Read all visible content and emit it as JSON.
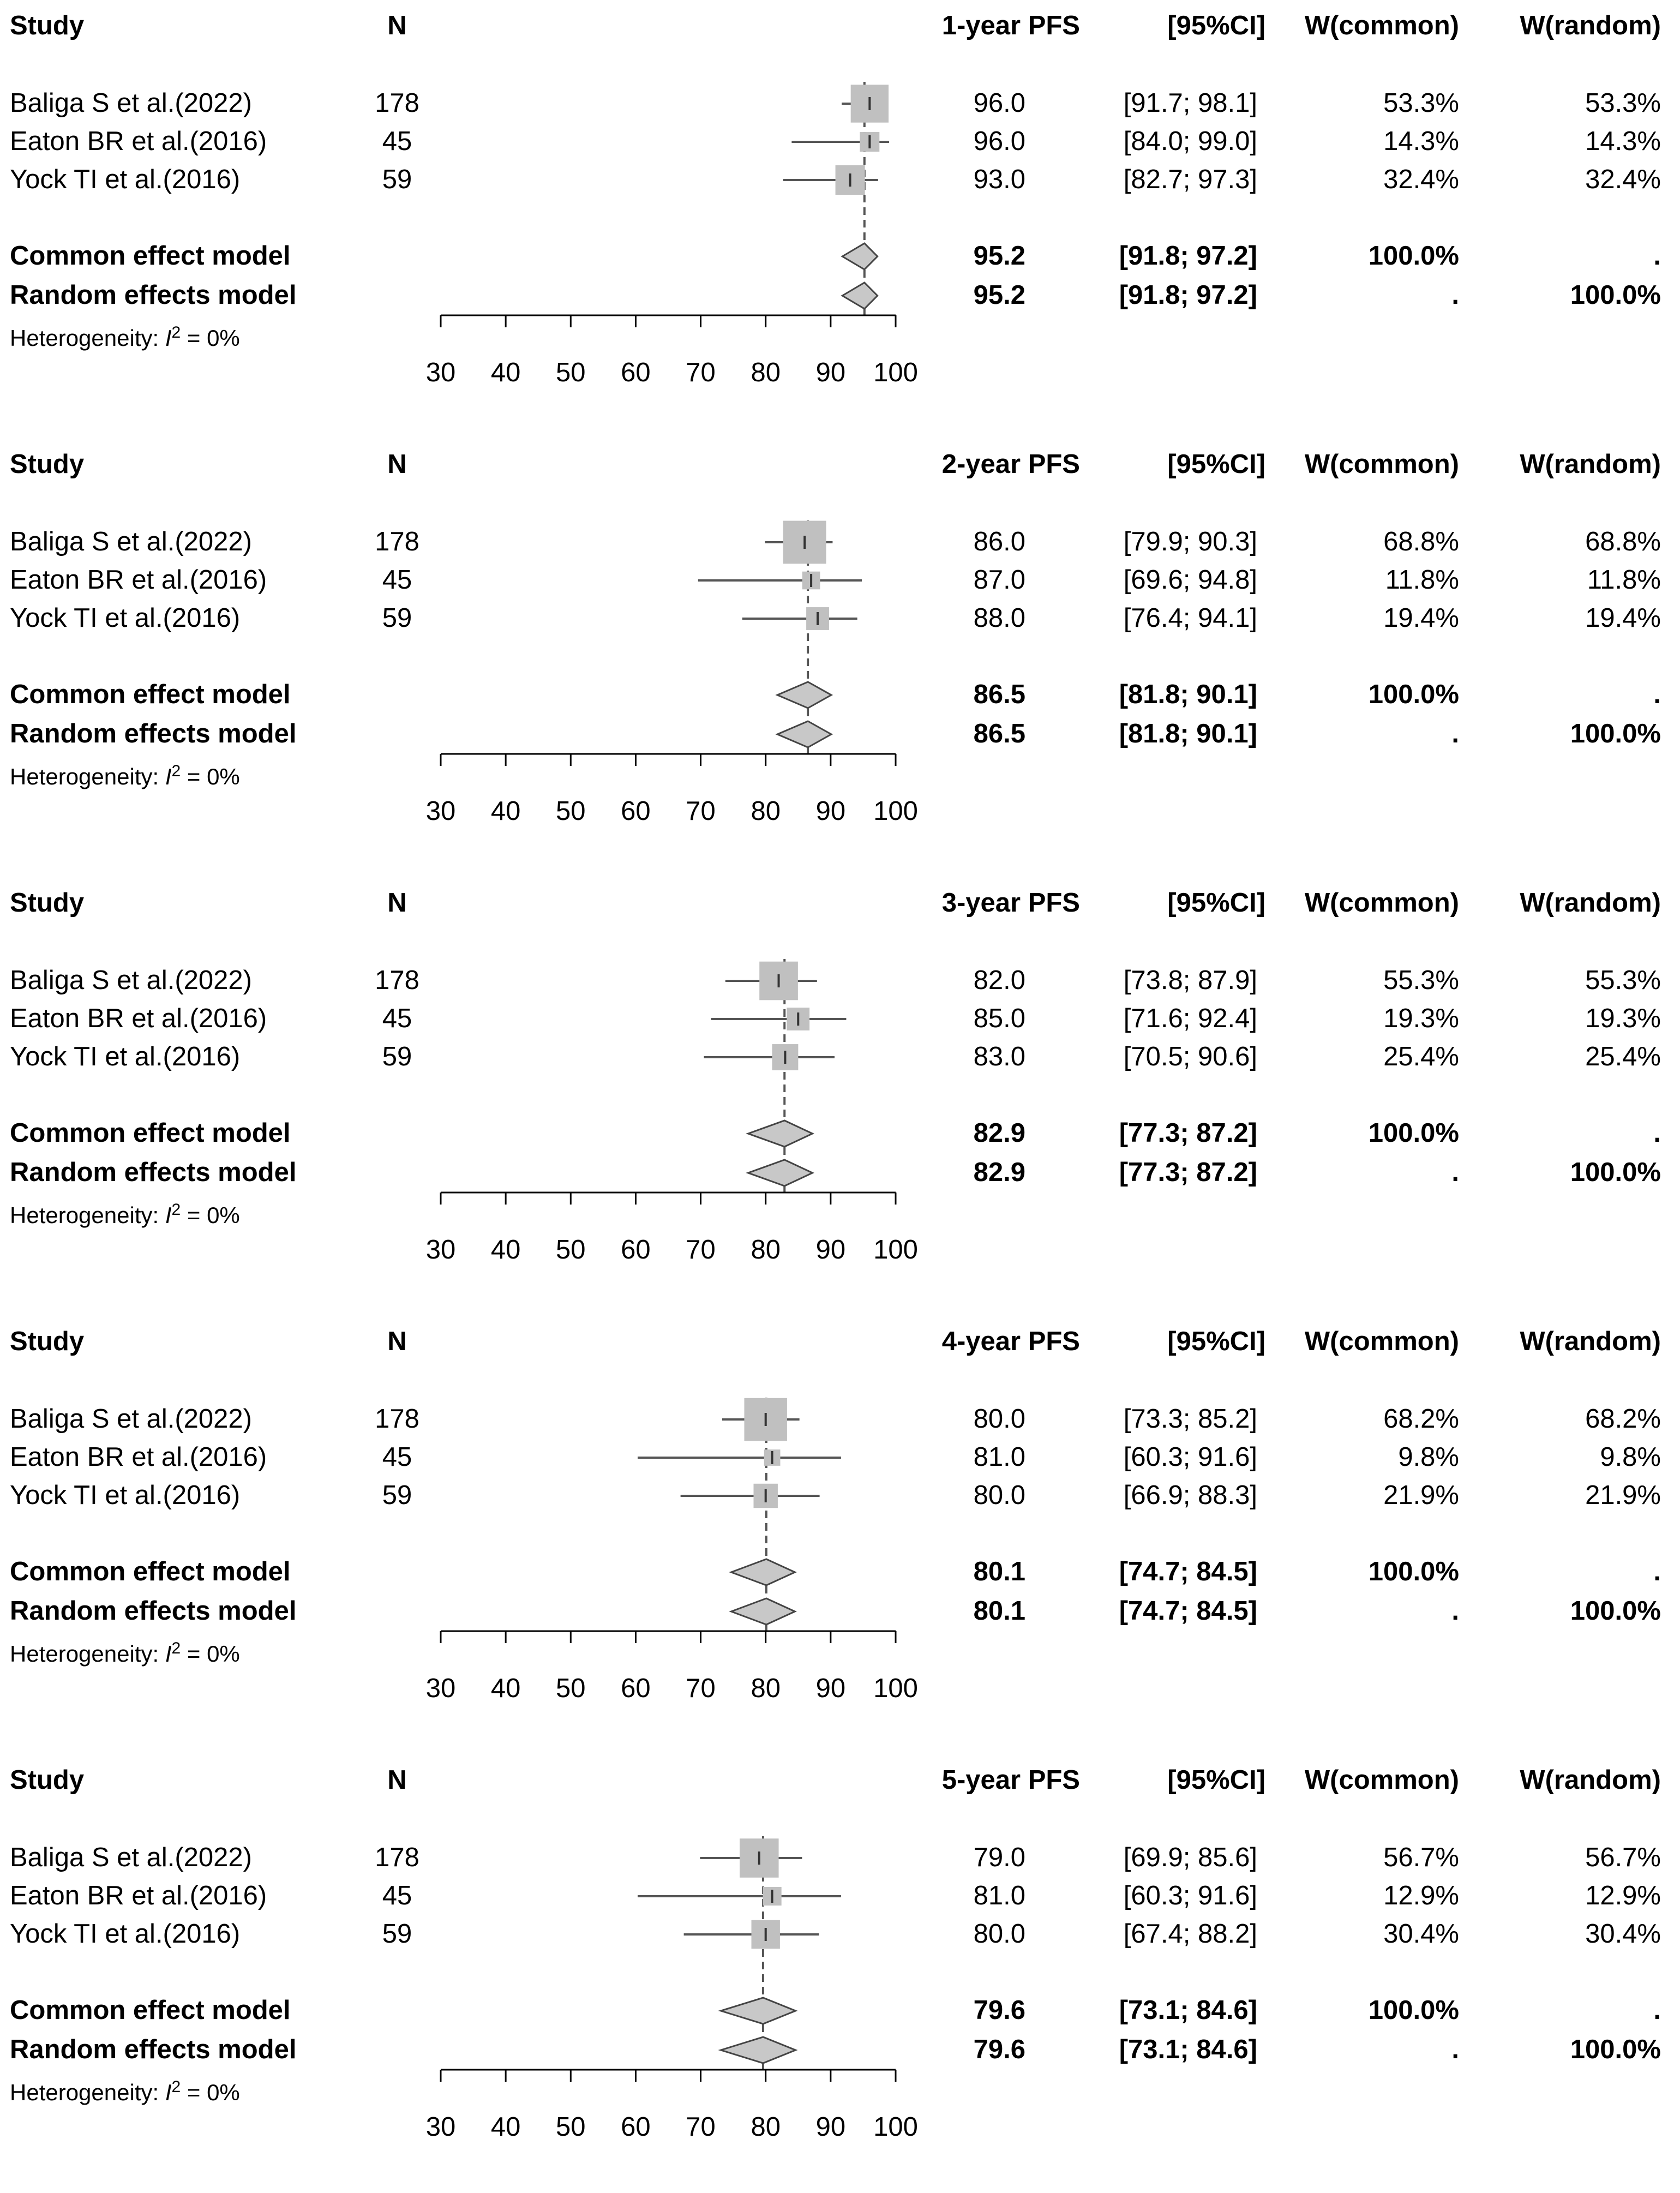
{
  "columns": {
    "study": "Study",
    "n": "N",
    "ci": "[95%CI]",
    "w_common": "W(common)",
    "w_random": "W(random)"
  },
  "heterogeneity": {
    "prefix": "Heterogeneity: ",
    "symbol": "I",
    "superscript": "2",
    "suffix": " = 0%"
  },
  "colors": {
    "box": "#c0c0c0",
    "diamond": "#c8c8c8",
    "line": "#555555",
    "dashed": "#555555"
  },
  "chart_data": [
    {
      "type": "forest",
      "title": "1-year PFS",
      "axis": {
        "min": 30,
        "max": 100,
        "ticks": [
          "30",
          "40",
          "50",
          "60",
          "70",
          "80",
          "90",
          "100"
        ]
      },
      "studies": [
        {
          "name": "Baliga S et al.(2022)",
          "n": "178",
          "est": 96.0,
          "lo": 91.7,
          "hi": 98.1,
          "est_label": "96.0",
          "ci_label": "[91.7; 98.1]",
          "w_common": "53.3%",
          "w_random": "53.3%"
        },
        {
          "name": "Eaton BR et al.(2016)",
          "n": "45",
          "est": 96.0,
          "lo": 84.0,
          "hi": 99.0,
          "est_label": "96.0",
          "ci_label": "[84.0; 99.0]",
          "w_common": "14.3%",
          "w_random": "14.3%"
        },
        {
          "name": "Yock TI et al.(2016)",
          "n": "59",
          "est": 93.0,
          "lo": 82.7,
          "hi": 97.3,
          "est_label": "93.0",
          "ci_label": "[82.7; 97.3]",
          "w_common": "32.4%",
          "w_random": "32.4%"
        }
      ],
      "common": {
        "label": "Common effect model",
        "est": 95.2,
        "lo": 91.8,
        "hi": 97.2,
        "est_label": "95.2",
        "ci_label": "[91.8; 97.2]",
        "w_common": "100.0%",
        "w_random": "."
      },
      "random": {
        "label": "Random effects model",
        "est": 95.2,
        "lo": 91.8,
        "hi": 97.2,
        "est_label": "95.2",
        "ci_label": "[91.8; 97.2]",
        "w_common": ".",
        "w_random": "100.0%"
      }
    },
    {
      "type": "forest",
      "title": "2-year PFS",
      "axis": {
        "min": 30,
        "max": 100,
        "ticks": [
          "30",
          "40",
          "50",
          "60",
          "70",
          "80",
          "90",
          "100"
        ]
      },
      "studies": [
        {
          "name": "Baliga S et al.(2022)",
          "n": "178",
          "est": 86.0,
          "lo": 79.9,
          "hi": 90.3,
          "est_label": "86.0",
          "ci_label": "[79.9; 90.3]",
          "w_common": "68.8%",
          "w_random": "68.8%"
        },
        {
          "name": "Eaton BR et al.(2016)",
          "n": "45",
          "est": 87.0,
          "lo": 69.6,
          "hi": 94.8,
          "est_label": "87.0",
          "ci_label": "[69.6; 94.8]",
          "w_common": "11.8%",
          "w_random": "11.8%"
        },
        {
          "name": "Yock TI et al.(2016)",
          "n": "59",
          "est": 88.0,
          "lo": 76.4,
          "hi": 94.1,
          "est_label": "88.0",
          "ci_label": "[76.4; 94.1]",
          "w_common": "19.4%",
          "w_random": "19.4%"
        }
      ],
      "common": {
        "label": "Common effect model",
        "est": 86.5,
        "lo": 81.8,
        "hi": 90.1,
        "est_label": "86.5",
        "ci_label": "[81.8; 90.1]",
        "w_common": "100.0%",
        "w_random": "."
      },
      "random": {
        "label": "Random effects model",
        "est": 86.5,
        "lo": 81.8,
        "hi": 90.1,
        "est_label": "86.5",
        "ci_label": "[81.8; 90.1]",
        "w_common": ".",
        "w_random": "100.0%"
      }
    },
    {
      "type": "forest",
      "title": "3-year PFS",
      "axis": {
        "min": 30,
        "max": 100,
        "ticks": [
          "30",
          "40",
          "50",
          "60",
          "70",
          "80",
          "90",
          "100"
        ]
      },
      "studies": [
        {
          "name": "Baliga S et al.(2022)",
          "n": "178",
          "est": 82.0,
          "lo": 73.8,
          "hi": 87.9,
          "est_label": "82.0",
          "ci_label": "[73.8; 87.9]",
          "w_common": "55.3%",
          "w_random": "55.3%"
        },
        {
          "name": "Eaton BR et al.(2016)",
          "n": "45",
          "est": 85.0,
          "lo": 71.6,
          "hi": 92.4,
          "est_label": "85.0",
          "ci_label": "[71.6; 92.4]",
          "w_common": "19.3%",
          "w_random": "19.3%"
        },
        {
          "name": "Yock TI et al.(2016)",
          "n": "59",
          "est": 83.0,
          "lo": 70.5,
          "hi": 90.6,
          "est_label": "83.0",
          "ci_label": "[70.5; 90.6]",
          "w_common": "25.4%",
          "w_random": "25.4%"
        }
      ],
      "common": {
        "label": "Common effect model",
        "est": 82.9,
        "lo": 77.3,
        "hi": 87.2,
        "est_label": "82.9",
        "ci_label": "[77.3; 87.2]",
        "w_common": "100.0%",
        "w_random": "."
      },
      "random": {
        "label": "Random effects model",
        "est": 82.9,
        "lo": 77.3,
        "hi": 87.2,
        "est_label": "82.9",
        "ci_label": "[77.3; 87.2]",
        "w_common": ".",
        "w_random": "100.0%"
      }
    },
    {
      "type": "forest",
      "title": "4-year PFS",
      "axis": {
        "min": 30,
        "max": 100,
        "ticks": [
          "30",
          "40",
          "50",
          "60",
          "70",
          "80",
          "90",
          "100"
        ]
      },
      "studies": [
        {
          "name": "Baliga S et al.(2022)",
          "n": "178",
          "est": 80.0,
          "lo": 73.3,
          "hi": 85.2,
          "est_label": "80.0",
          "ci_label": "[73.3; 85.2]",
          "w_common": "68.2%",
          "w_random": "68.2%"
        },
        {
          "name": "Eaton BR et al.(2016)",
          "n": "45",
          "est": 81.0,
          "lo": 60.3,
          "hi": 91.6,
          "est_label": "81.0",
          "ci_label": "[60.3; 91.6]",
          "w_common": "9.8%",
          "w_random": "9.8%"
        },
        {
          "name": "Yock TI et al.(2016)",
          "n": "59",
          "est": 80.0,
          "lo": 66.9,
          "hi": 88.3,
          "est_label": "80.0",
          "ci_label": "[66.9; 88.3]",
          "w_common": "21.9%",
          "w_random": "21.9%"
        }
      ],
      "common": {
        "label": "Common effect model",
        "est": 80.1,
        "lo": 74.7,
        "hi": 84.5,
        "est_label": "80.1",
        "ci_label": "[74.7; 84.5]",
        "w_common": "100.0%",
        "w_random": "."
      },
      "random": {
        "label": "Random effects model",
        "est": 80.1,
        "lo": 74.7,
        "hi": 84.5,
        "est_label": "80.1",
        "ci_label": "[74.7; 84.5]",
        "w_common": ".",
        "w_random": "100.0%"
      }
    },
    {
      "type": "forest",
      "title": "5-year PFS",
      "axis": {
        "min": 30,
        "max": 100,
        "ticks": [
          "30",
          "40",
          "50",
          "60",
          "70",
          "80",
          "90",
          "100"
        ]
      },
      "studies": [
        {
          "name": "Baliga S et al.(2022)",
          "n": "178",
          "est": 79.0,
          "lo": 69.9,
          "hi": 85.6,
          "est_label": "79.0",
          "ci_label": "[69.9; 85.6]",
          "w_common": "56.7%",
          "w_random": "56.7%"
        },
        {
          "name": "Eaton BR et al.(2016)",
          "n": "45",
          "est": 81.0,
          "lo": 60.3,
          "hi": 91.6,
          "est_label": "81.0",
          "ci_label": "[60.3; 91.6]",
          "w_common": "12.9%",
          "w_random": "12.9%"
        },
        {
          "name": "Yock TI et al.(2016)",
          "n": "59",
          "est": 80.0,
          "lo": 67.4,
          "hi": 88.2,
          "est_label": "80.0",
          "ci_label": "[67.4; 88.2]",
          "w_common": "30.4%",
          "w_random": "30.4%"
        }
      ],
      "common": {
        "label": "Common effect model",
        "est": 79.6,
        "lo": 73.1,
        "hi": 84.6,
        "est_label": "79.6",
        "ci_label": "[73.1; 84.6]",
        "w_common": "100.0%",
        "w_random": "."
      },
      "random": {
        "label": "Random effects model",
        "est": 79.6,
        "lo": 73.1,
        "hi": 84.6,
        "est_label": "79.6",
        "ci_label": "[73.1; 84.6]",
        "w_common": ".",
        "w_random": "100.0%"
      }
    }
  ]
}
